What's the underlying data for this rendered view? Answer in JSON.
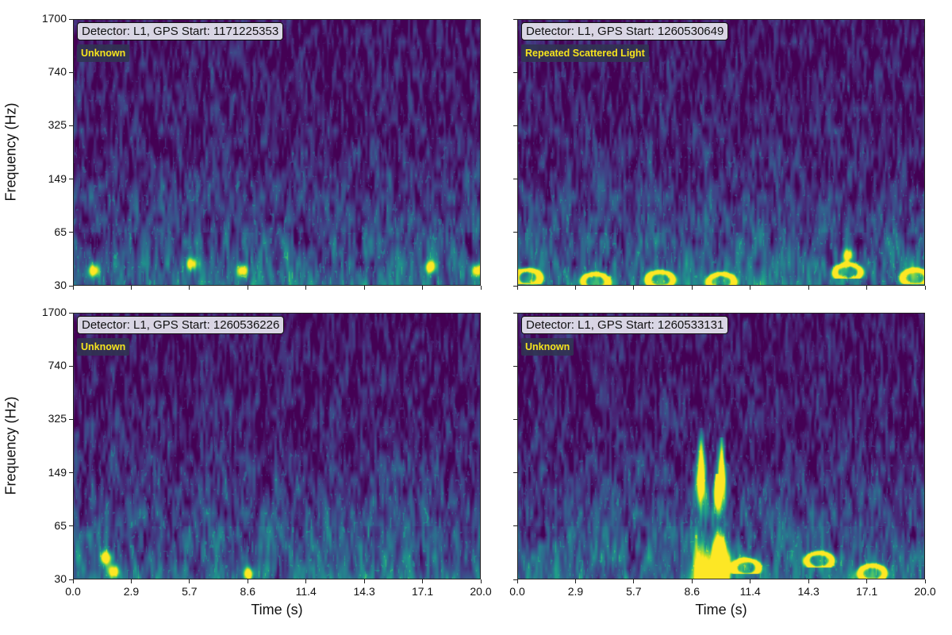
{
  "figure": {
    "y_axis_title": "Frequency (Hz)",
    "x_axis_title": "Time (s)"
  },
  "chart_data": [
    {
      "type": "heatmap",
      "panel": "top-left",
      "title": "Detector: L1, GPS Start: 1171225353",
      "class_label": "Unknown",
      "xlabel": "",
      "ylabel": "Frequency (Hz)",
      "x_ticks": [],
      "y_ticks": [
        "1700",
        "740",
        "325",
        "149",
        "65",
        "30"
      ],
      "xlim": [
        0,
        20
      ],
      "ylim": [
        30,
        1700
      ],
      "y_scale": "log",
      "colormap": "viridis",
      "features": [
        {
          "kind": "blob",
          "t": 5.8,
          "f": 42
        },
        {
          "kind": "blob",
          "t": 1.0,
          "f": 38
        },
        {
          "kind": "blob",
          "t": 8.3,
          "f": 38
        },
        {
          "kind": "blob",
          "t": 17.5,
          "f": 40
        },
        {
          "kind": "blob",
          "t": 19.8,
          "f": 38
        }
      ]
    },
    {
      "type": "heatmap",
      "panel": "top-right",
      "title": "Detector: L1, GPS Start: 1260530649",
      "class_label": "Repeated Scattered Light",
      "xlabel": "",
      "ylabel": "",
      "x_ticks": [],
      "y_ticks": [],
      "xlim": [
        0,
        20
      ],
      "ylim": [
        30,
        1700
      ],
      "y_scale": "log",
      "colormap": "viridis",
      "features": [
        {
          "kind": "arch",
          "t": 0.5,
          "f": 34
        },
        {
          "kind": "arch",
          "t": 3.8,
          "f": 32
        },
        {
          "kind": "arch",
          "t": 7.0,
          "f": 33
        },
        {
          "kind": "arch",
          "t": 10.0,
          "f": 32
        },
        {
          "kind": "arch",
          "t": 16.2,
          "f": 37
        },
        {
          "kind": "arch",
          "t": 19.5,
          "f": 34
        },
        {
          "kind": "blob",
          "t": 16.2,
          "f": 48
        }
      ]
    },
    {
      "type": "heatmap",
      "panel": "bottom-left",
      "title": "Detector: L1, GPS Start: 1260536226",
      "class_label": "Unknown",
      "xlabel": "Time (s)",
      "ylabel": "Frequency (Hz)",
      "x_ticks": [
        "0.0",
        "2.9",
        "5.7",
        "8.6",
        "11.4",
        "14.3",
        "17.1",
        "20.0"
      ],
      "y_ticks": [
        "1700",
        "740",
        "325",
        "149",
        "65",
        "30"
      ],
      "xlim": [
        0,
        20
      ],
      "ylim": [
        30,
        1700
      ],
      "y_scale": "log",
      "colormap": "viridis",
      "features": [
        {
          "kind": "blob",
          "t": 1.6,
          "f": 42
        },
        {
          "kind": "blob",
          "t": 2.0,
          "f": 34
        },
        {
          "kind": "blob",
          "t": 8.6,
          "f": 33
        }
      ]
    },
    {
      "type": "heatmap",
      "panel": "bottom-right",
      "title": "Detector: L1, GPS Start: 1260533131",
      "class_label": "Unknown",
      "xlabel": "Time (s)",
      "ylabel": "",
      "x_ticks": [
        "0.0",
        "2.9",
        "5.7",
        "8.6",
        "11.4",
        "14.3",
        "17.1",
        "20.0"
      ],
      "y_ticks": [],
      "xlim": [
        0,
        20
      ],
      "ylim": [
        30,
        1700
      ],
      "y_scale": "log",
      "colormap": "viridis",
      "features": [
        {
          "kind": "spike",
          "t": 9.0,
          "f_top": 300
        },
        {
          "kind": "spike",
          "t": 9.8,
          "f_top": 150
        },
        {
          "kind": "spike",
          "t": 10.0,
          "f_top": 260
        },
        {
          "kind": "arch",
          "t": 11.2,
          "f": 36
        },
        {
          "kind": "arch",
          "t": 14.8,
          "f": 40
        },
        {
          "kind": "arch",
          "t": 17.4,
          "f": 33
        }
      ]
    }
  ]
}
